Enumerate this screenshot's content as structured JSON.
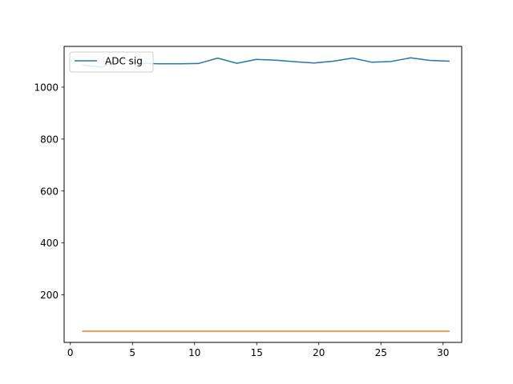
{
  "chart_data": {
    "type": "line",
    "title": "",
    "xlabel": "",
    "ylabel": "",
    "xlim": [
      -0.5,
      31.5
    ],
    "ylim": [
      17,
      1157
    ],
    "xticks": [
      0,
      5,
      10,
      15,
      20,
      25,
      30
    ],
    "yticks": [
      200,
      400,
      600,
      800,
      1000
    ],
    "grid": false,
    "legend_position": "top-left",
    "series": [
      {
        "name": "ADC sig",
        "color": "#1f77b4",
        "x": [
          1,
          2.55,
          4.1,
          5.66,
          7.21,
          8.76,
          10.31,
          11.86,
          13.41,
          14.97,
          16.52,
          18.07,
          19.62,
          21.17,
          22.72,
          24.28,
          25.83,
          27.38,
          28.93,
          30.48
        ],
        "values": [
          1085,
          1077,
          1110,
          1092,
          1090,
          1090,
          1091,
          1112,
          1092,
          1107,
          1104,
          1098,
          1093,
          1100,
          1112,
          1096,
          1099,
          1113,
          1103,
          1100
        ]
      },
      {
        "color": "#ff7f0e",
        "x": [
          1,
          30.48
        ],
        "values": [
          60,
          60
        ]
      }
    ]
  }
}
